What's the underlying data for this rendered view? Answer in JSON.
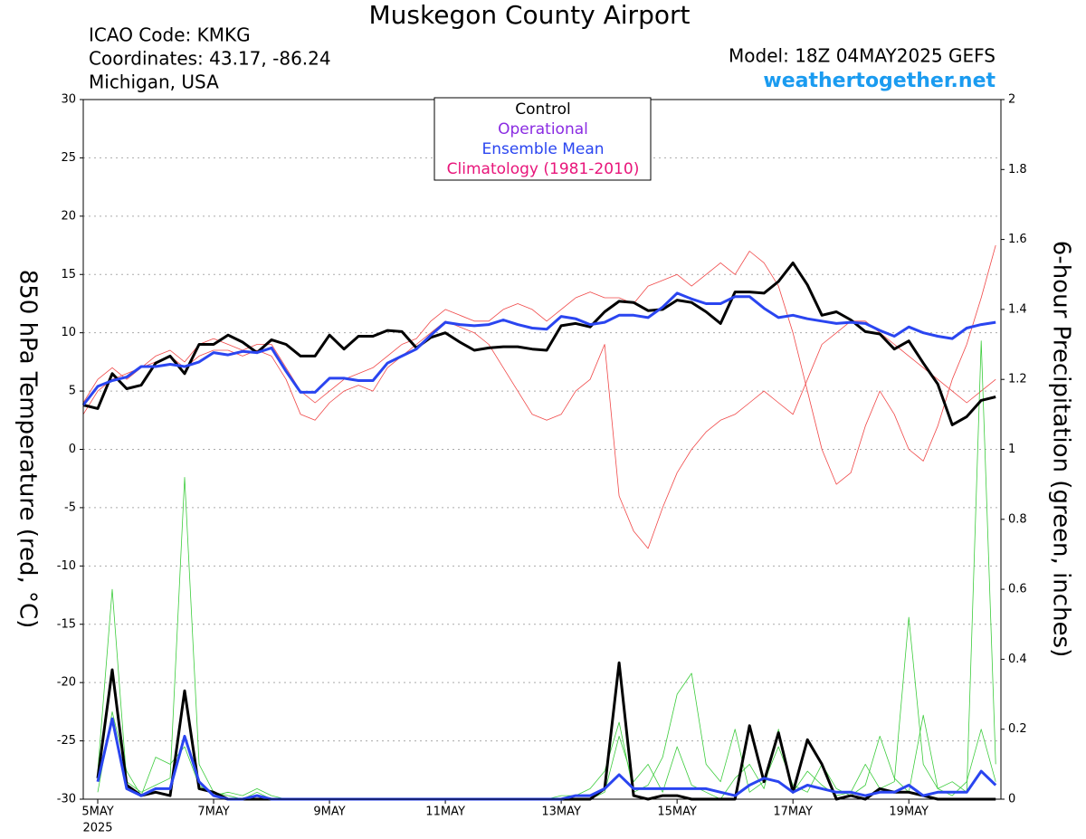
{
  "chart_data": {
    "type": "line",
    "title": "Muskegon County Airport",
    "info_left": [
      "ICAO Code: KMKG",
      "Coordinates: 43.17, -86.24",
      "Michigan, USA"
    ],
    "model": "Model: 18Z 04MAY2025 GEFS",
    "site": "weathertogether.net",
    "y_label": "850 hPa Temperature (red, °C)",
    "y2_label": "6-hour Precipitation (green, inches)",
    "year_label": "2025",
    "legend": [
      "Control",
      "Operational",
      "Ensemble Mean",
      "Climatology (1981-2010)"
    ],
    "legend_colors": [
      "#000000",
      "#8a2be2",
      "#2a45f0",
      "#e8157a"
    ],
    "xlim": [
      4.75,
      20.59
    ],
    "xticks": [
      {
        "value": 5,
        "label": "5MAY"
      },
      {
        "value": 7,
        "label": "7MAY"
      },
      {
        "value": 9,
        "label": "9MAY"
      },
      {
        "value": 11,
        "label": "11MAY"
      },
      {
        "value": 13,
        "label": "13MAY"
      },
      {
        "value": 15,
        "label": "15MAY"
      },
      {
        "value": 17,
        "label": "17MAY"
      },
      {
        "value": 19,
        "label": "19MAY"
      }
    ],
    "ylim": [
      -30,
      30
    ],
    "yticks": [
      -30,
      -25,
      -20,
      -15,
      -10,
      -5,
      0,
      5,
      10,
      15,
      20,
      25,
      30
    ],
    "y2lim": [
      0,
      2
    ],
    "y2ticks": [
      0,
      0.2,
      0.4,
      0.6,
      0.8,
      1,
      1.2,
      1.4,
      1.6,
      1.8,
      2
    ],
    "grid": true,
    "x": [
      4.75,
      5,
      5.25,
      5.5,
      5.75,
      6,
      6.25,
      6.5,
      6.75,
      7,
      7.25,
      7.5,
      7.75,
      8,
      8.25,
      8.5,
      8.75,
      9,
      9.25,
      9.5,
      9.75,
      10,
      10.25,
      10.5,
      10.75,
      11,
      11.25,
      11.5,
      11.75,
      12,
      12.25,
      12.5,
      12.75,
      13,
      13.25,
      13.5,
      13.75,
      14,
      14.25,
      14.5,
      14.75,
      15,
      15.25,
      15.5,
      15.75,
      16,
      16.25,
      16.5,
      16.75,
      17,
      17.25,
      17.5,
      17.75,
      18,
      18.25,
      18.5,
      18.75,
      19,
      19.25,
      19.5,
      19.75,
      20,
      20.25,
      20.5
    ],
    "members": [
      {
        "color": "#f04848",
        "values": [
          3,
          5,
          6,
          6.5,
          7,
          7.5,
          8,
          7,
          8,
          8.5,
          8.5,
          8,
          8.5,
          8,
          6,
          3,
          2.5,
          4,
          5,
          5.5,
          5,
          7,
          8,
          9,
          10,
          11,
          10.5,
          10,
          9,
          7,
          5,
          3,
          2.5,
          3,
          5,
          6,
          9,
          -4,
          -7,
          -8.5,
          -5,
          -2,
          0,
          1.5,
          2.5,
          3,
          4,
          5,
          4,
          3,
          6,
          9,
          10,
          11,
          11,
          10,
          9,
          8,
          7,
          6,
          5,
          4,
          5,
          6
        ]
      },
      {
        "color": "#f04848",
        "values": [
          4,
          6,
          7,
          6,
          7,
          8,
          8.5,
          7.5,
          9,
          9.5,
          9,
          8.5,
          9,
          9,
          7,
          5,
          4,
          5,
          6,
          6.5,
          7,
          8,
          9,
          9.5,
          11,
          12,
          11.5,
          11,
          11,
          12,
          12.5,
          12,
          11,
          12,
          13,
          13.5,
          13,
          13,
          12.5,
          14,
          14.5,
          15,
          14,
          15,
          16,
          15,
          17,
          16,
          14,
          10,
          5,
          0,
          -3,
          -2,
          2,
          5,
          3,
          0,
          -1,
          2,
          6,
          9,
          13,
          17.5
        ]
      },
      {
        "color": "#3ccc3c",
        "axis": "y2",
        "values": [
          null,
          0.08,
          0.6,
          0.05,
          0.02,
          0.04,
          0.06,
          0.92,
          0.1,
          0.02,
          0.01,
          0,
          0.02,
          0,
          0,
          0,
          0,
          0,
          0,
          0,
          0,
          0,
          0,
          0,
          0,
          0,
          0,
          0,
          0,
          0,
          0,
          0,
          0,
          0,
          0,
          0,
          0.02,
          0.18,
          0.05,
          0.1,
          0.02,
          0.15,
          0.04,
          0.02,
          0,
          0.06,
          0.1,
          0.03,
          0.2,
          0.02,
          0.08,
          0.04,
          0.01,
          0.02,
          0.1,
          0.03,
          0.05,
          0.52,
          0.1,
          0.03,
          0.05,
          0.02,
          1.31,
          0.1
        ]
      },
      {
        "color": "#3ccc3c",
        "axis": "y2",
        "values": [
          null,
          0.02,
          0.25,
          0.08,
          0.01,
          0.12,
          0.1,
          0.15,
          0.04,
          0.01,
          0.02,
          0.01,
          0.03,
          0.01,
          0,
          0,
          0,
          0,
          0,
          0,
          0,
          0,
          0,
          0,
          0,
          0,
          0,
          0,
          0,
          0,
          0,
          0,
          0,
          0.01,
          0.01,
          0.03,
          0.08,
          0.22,
          0.02,
          0.04,
          0.12,
          0.3,
          0.36,
          0.1,
          0.05,
          0.2,
          0.02,
          0.05,
          0.15,
          0.04,
          0.02,
          0.1,
          0.03,
          0.01,
          0.04,
          0.18,
          0.06,
          0.02,
          0.24,
          0.03,
          0.01,
          0.05,
          0.2,
          0.05
        ]
      }
    ],
    "series": [
      {
        "color": "#000000",
        "values": [
          3.8,
          3.5,
          6.5,
          5.2,
          5.5,
          7.4,
          8.0,
          6.5,
          9.0,
          9.0,
          9.8,
          9.2,
          8.3,
          9.4,
          9.0,
          8.0,
          8.0,
          9.8,
          8.6,
          9.7,
          9.7,
          10.2,
          10.1,
          8.7,
          9.6,
          10.0,
          9.2,
          8.5,
          8.7,
          8.8,
          8.8,
          8.6,
          8.5,
          10.6,
          10.8,
          10.5,
          11.8,
          12.7,
          12.6,
          11.9,
          12.0,
          12.8,
          12.6,
          11.8,
          10.8,
          13.5,
          13.5,
          13.4,
          14.4,
          16.0,
          14.1,
          11.5,
          11.8,
          11.1,
          10.1,
          9.9,
          8.6,
          9.3,
          7.4,
          5.6,
          2.1,
          2.8,
          4.2,
          4.5
        ]
      },
      {
        "color": "#2a45f0",
        "values": [
          3.8,
          5.4,
          5.9,
          6.2,
          7.1,
          7.1,
          7.3,
          7.1,
          7.5,
          8.3,
          8.1,
          8.4,
          8.3,
          8.7,
          6.7,
          4.9,
          4.9,
          6.1,
          6.1,
          5.9,
          5.9,
          7.4,
          8.0,
          8.6,
          9.8,
          10.9,
          10.7,
          10.6,
          10.7,
          11.1,
          10.7,
          10.4,
          10.3,
          11.4,
          11.2,
          10.7,
          10.9,
          11.5,
          11.5,
          11.3,
          12.2,
          13.4,
          12.9,
          12.5,
          12.5,
          13.1,
          13.1,
          12.1,
          11.3,
          11.5,
          11.2,
          11.0,
          10.8,
          10.9,
          10.8,
          10.2,
          9.7,
          10.5,
          10.0,
          9.7,
          9.5,
          10.4,
          10.7,
          10.9
        ]
      },
      {
        "color": "#000000",
        "axis": "y2",
        "values": [
          null,
          0.06,
          0.37,
          0.04,
          0.01,
          0.02,
          0.01,
          0.31,
          0.03,
          0.02,
          0,
          0,
          0,
          0,
          0,
          0,
          0,
          0,
          0,
          0,
          0,
          0,
          0,
          0,
          0,
          0,
          0,
          0,
          0,
          0,
          0,
          0,
          0,
          0,
          0,
          0,
          0.03,
          0.39,
          0.01,
          0,
          0.01,
          0.01,
          0,
          0,
          0,
          0,
          0.21,
          0.05,
          0.19,
          0.02,
          0.17,
          0.1,
          0,
          0.01,
          0,
          0.03,
          0.02,
          0.02,
          0.01,
          0,
          0,
          0,
          0,
          0
        ]
      },
      {
        "color": "#2a45f0",
        "axis": "y2",
        "values": [
          null,
          0.05,
          0.23,
          0.03,
          0.01,
          0.03,
          0.03,
          0.18,
          0.05,
          0.01,
          0,
          0,
          0.01,
          0,
          0,
          0,
          0,
          0,
          0,
          0,
          0,
          0,
          0,
          0,
          0,
          0,
          0,
          0,
          0,
          0,
          0,
          0,
          0,
          0,
          0.01,
          0.01,
          0.03,
          0.07,
          0.03,
          0.03,
          0.03,
          0.03,
          0.03,
          0.03,
          0.02,
          0.01,
          0.04,
          0.06,
          0.05,
          0.02,
          0.04,
          0.03,
          0.02,
          0.02,
          0.01,
          0.02,
          0.02,
          0.04,
          0.01,
          0.02,
          0.02,
          0.02,
          0.08,
          0.04
        ]
      }
    ]
  }
}
